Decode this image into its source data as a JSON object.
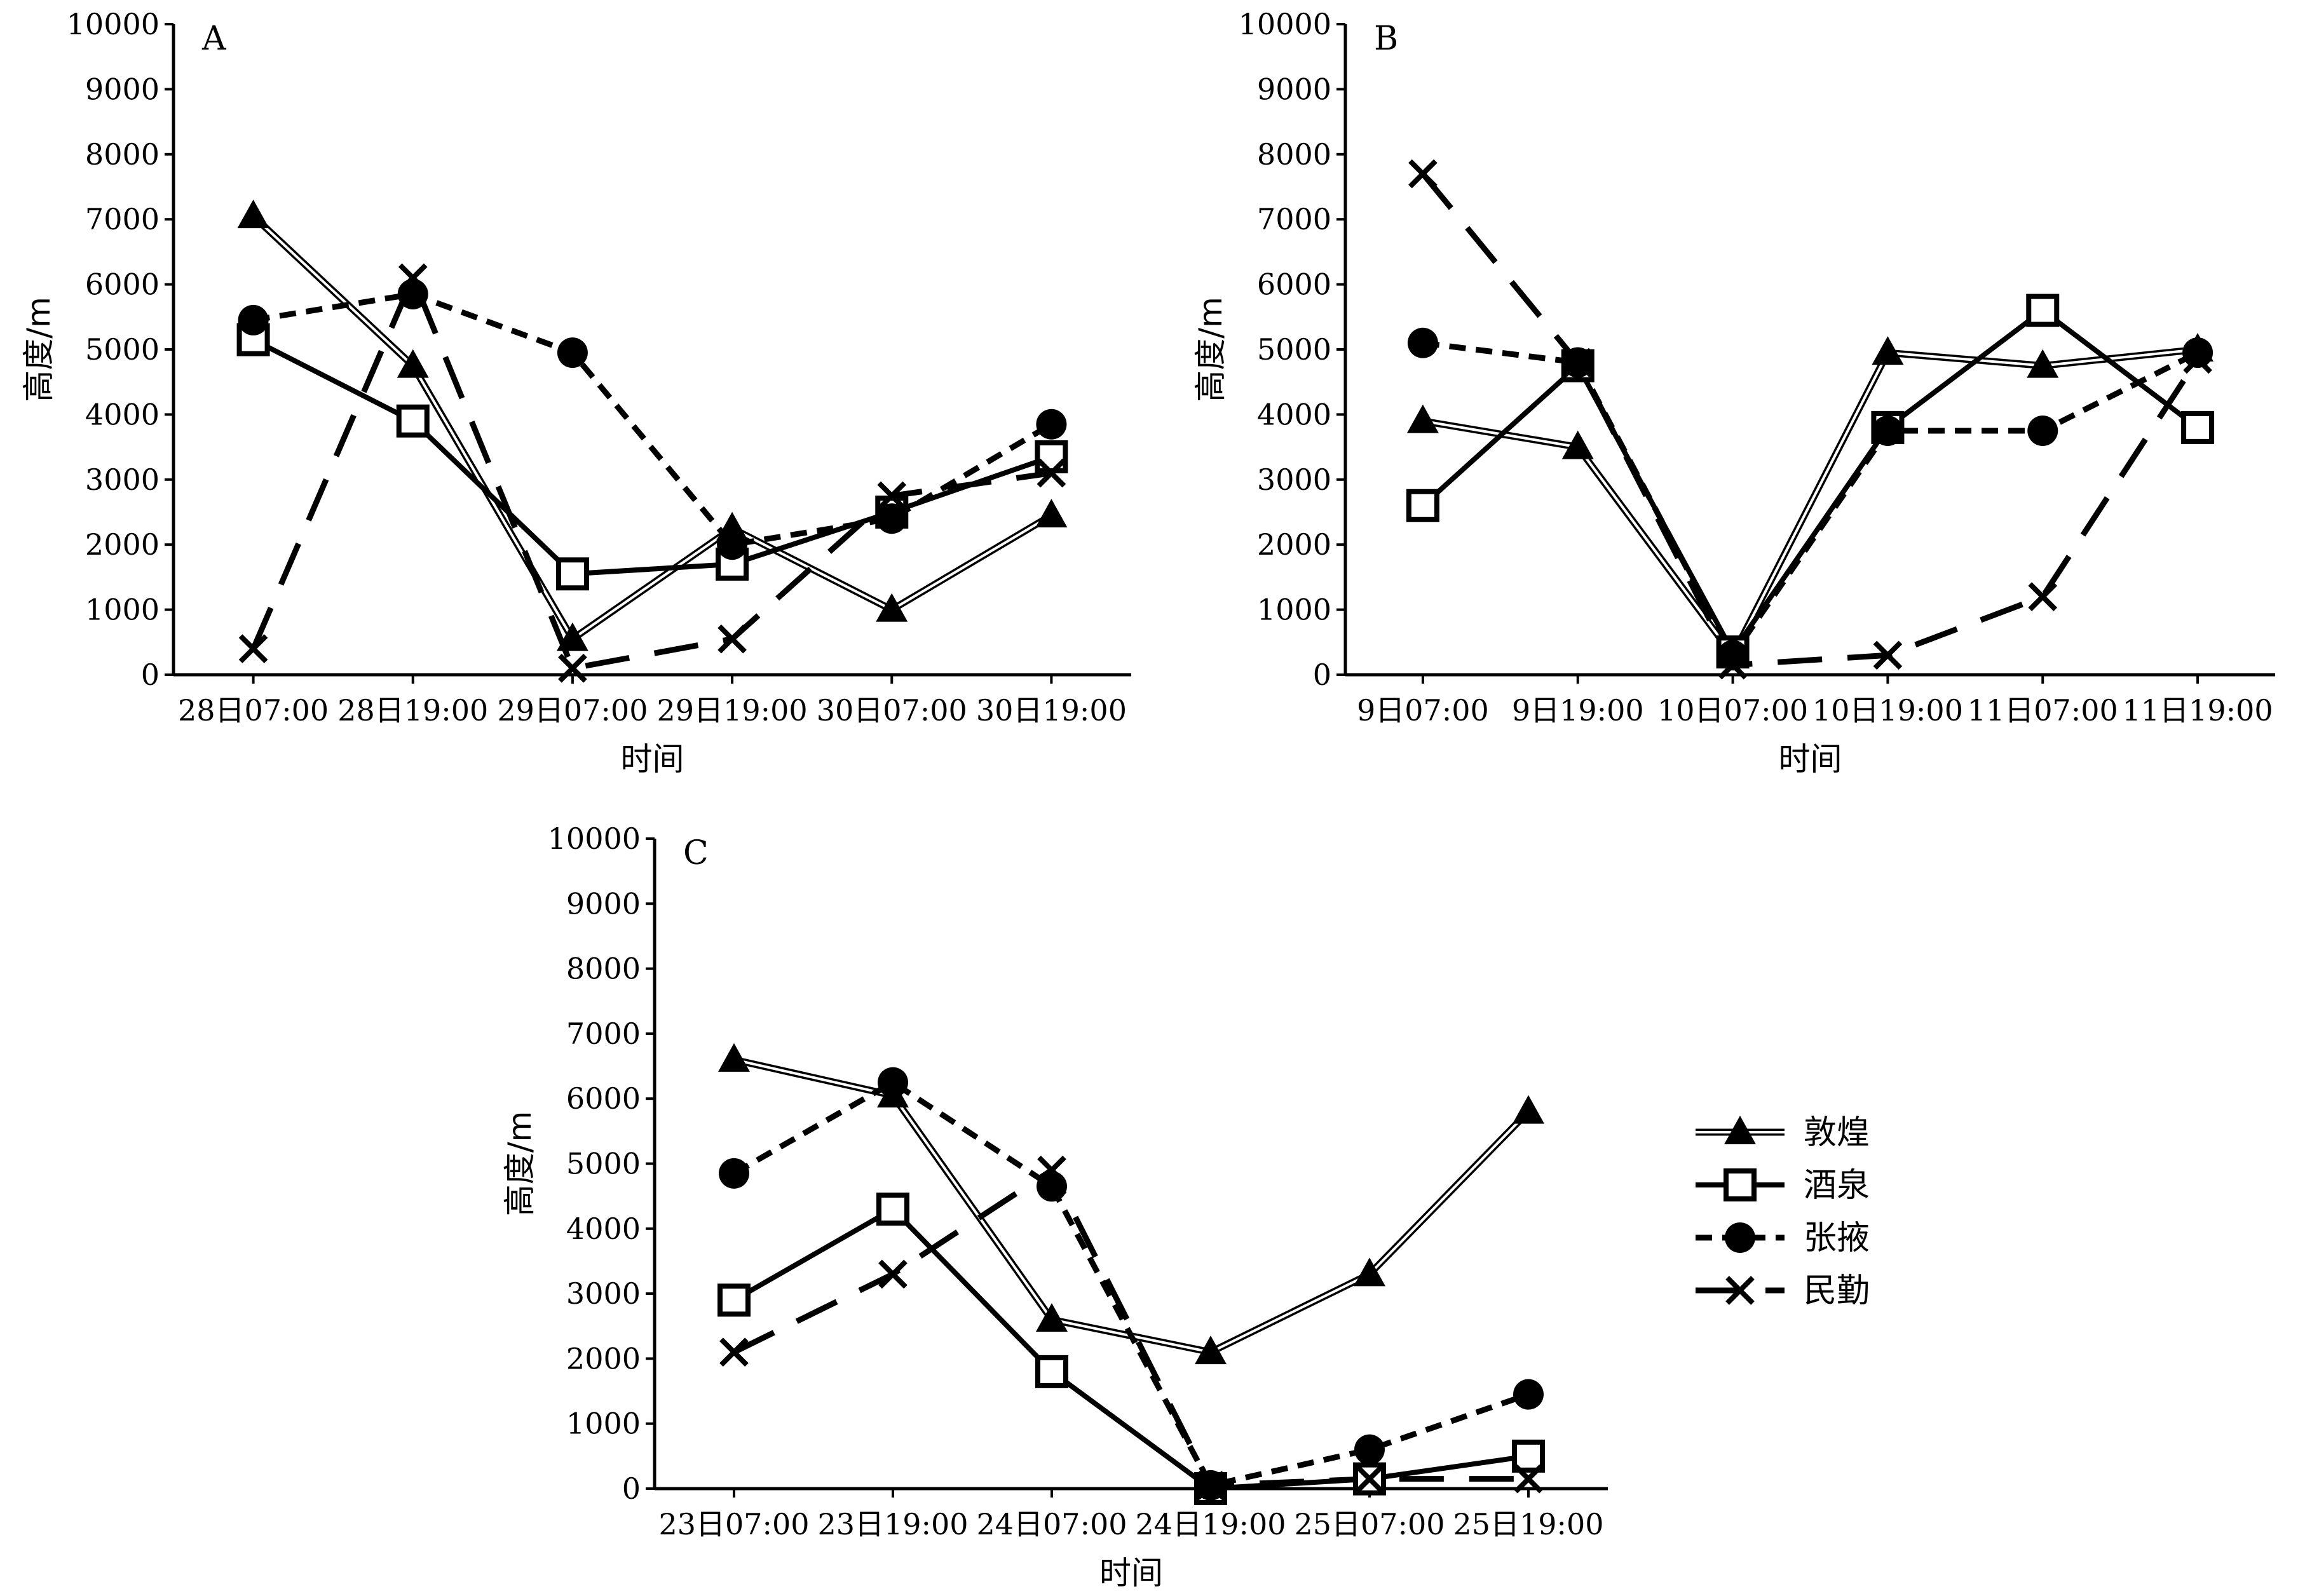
{
  "legend": {
    "entries": [
      {
        "series": "敦煌",
        "label": "敦煌"
      },
      {
        "series": "酒泉",
        "label": "酒泉"
      },
      {
        "series": "张掖",
        "label": "张掖"
      },
      {
        "series": "民勤",
        "label": "民勤"
      }
    ]
  },
  "chart_data": [
    {
      "type": "line",
      "panel": "A",
      "xlabel": "时间",
      "ylabel": "高度/m",
      "ylim": [
        0,
        10000
      ],
      "yticks": [
        0,
        1000,
        2000,
        3000,
        4000,
        5000,
        6000,
        7000,
        8000,
        9000,
        10000
      ],
      "categories": [
        "28日07:00",
        "28日19:00",
        "29日07:00",
        "29日19:00",
        "30日07:00",
        "30日19:00"
      ],
      "series": [
        {
          "name": "敦煌",
          "values": [
            7050,
            4750,
            550,
            2250,
            1000,
            2450
          ]
        },
        {
          "name": "酒泉",
          "values": [
            5150,
            3900,
            1550,
            1700,
            2500,
            3350
          ]
        },
        {
          "name": "张掖",
          "values": [
            5450,
            5850,
            4950,
            2000,
            2400,
            3850
          ]
        },
        {
          "name": "民勤",
          "values": [
            400,
            6100,
            100,
            550,
            2750,
            3100
          ]
        }
      ]
    },
    {
      "type": "line",
      "panel": "B",
      "xlabel": "时间",
      "ylabel": "高度/m",
      "ylim": [
        0,
        10000
      ],
      "yticks": [
        0,
        1000,
        2000,
        3000,
        4000,
        5000,
        6000,
        7000,
        8000,
        9000,
        10000
      ],
      "categories": [
        "9日07:00",
        "9日19:00",
        "10日07:00",
        "10日19:00",
        "11日07:00",
        "11日19:00"
      ],
      "series": [
        {
          "name": "敦煌",
          "values": [
            3900,
            3500,
            300,
            4950,
            4750,
            5000
          ]
        },
        {
          "name": "酒泉",
          "values": [
            2600,
            4750,
            350,
            3800,
            5600,
            3800
          ]
        },
        {
          "name": "张掖",
          "values": [
            5100,
            4800,
            300,
            3750,
            3750,
            4950
          ]
        },
        {
          "name": "民勤",
          "values": [
            7700,
            4800,
            150,
            300,
            1200,
            4850
          ]
        }
      ]
    },
    {
      "type": "line",
      "panel": "C",
      "xlabel": "时间",
      "ylabel": "高度/m",
      "ylim": [
        0,
        10000
      ],
      "yticks": [
        0,
        1000,
        2000,
        3000,
        4000,
        5000,
        6000,
        7000,
        8000,
        9000,
        10000
      ],
      "categories": [
        "23日07:00",
        "23日19:00",
        "24日07:00",
        "24日19:00",
        "25日07:00",
        "25日19:00"
      ],
      "series": [
        {
          "name": "敦煌",
          "values": [
            6600,
            6050,
            2600,
            2100,
            3300,
            5800
          ]
        },
        {
          "name": "酒泉",
          "values": [
            2900,
            4300,
            1800,
            0,
            150,
            500
          ]
        },
        {
          "name": "张掖",
          "values": [
            4850,
            6250,
            4650,
            50,
            600,
            1450
          ]
        },
        {
          "name": "民勤",
          "values": [
            2100,
            3300,
            4900,
            50,
            150,
            150
          ]
        }
      ]
    }
  ]
}
